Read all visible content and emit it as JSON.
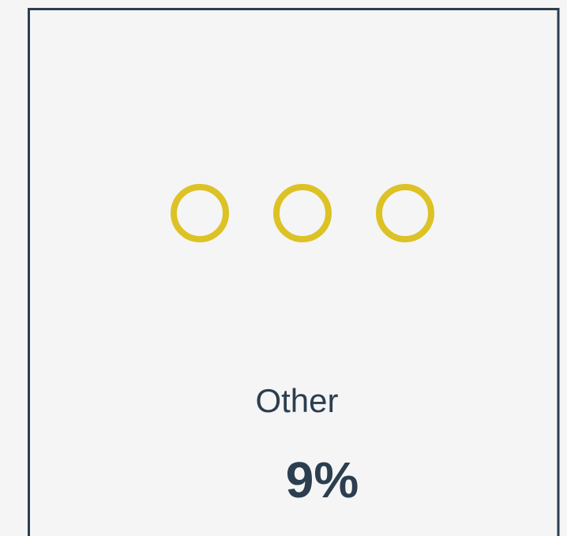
{
  "card": {
    "label": "Other",
    "percent": "9%"
  }
}
